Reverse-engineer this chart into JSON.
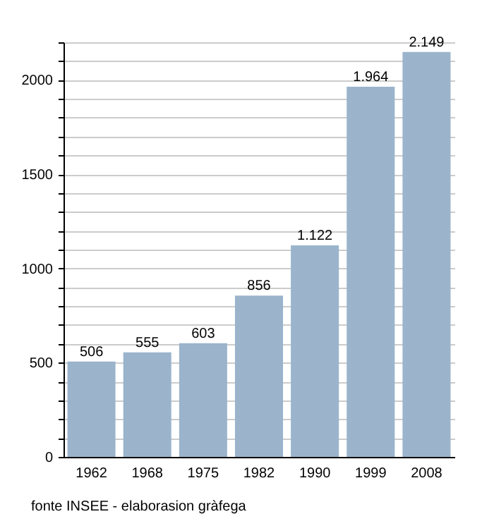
{
  "chart_data": {
    "type": "bar",
    "categories": [
      "1962",
      "1968",
      "1975",
      "1982",
      "1990",
      "1999",
      "2008"
    ],
    "values": [
      506,
      555,
      603,
      856,
      1122,
      1964,
      2149
    ],
    "value_labels": [
      "506",
      "555",
      "603",
      "856",
      "1.122",
      "1.964",
      "2.149"
    ],
    "color": "#9bb4cc",
    "ylim": [
      0,
      2200
    ],
    "yticks": [
      0,
      {
        "value": 100,
        "label": null
      },
      {
        "value": 200,
        "label": null
      },
      {
        "value": 300,
        "label": null
      },
      {
        "value": 400,
        "label": null
      },
      500,
      {
        "value": 600,
        "label": null
      },
      {
        "value": 700,
        "label": null
      },
      {
        "value": 800,
        "label": null
      },
      {
        "value": 900,
        "label": null
      },
      1000,
      {
        "value": 1100,
        "label": null
      },
      {
        "value": 1200,
        "label": null
      },
      {
        "value": 1300,
        "label": null
      },
      {
        "value": 1400,
        "label": null
      },
      1500,
      {
        "value": 1600,
        "label": null
      },
      {
        "value": 1700,
        "label": null
      },
      {
        "value": 1800,
        "label": null
      },
      {
        "value": 1900,
        "label": null
      },
      2000,
      {
        "value": 2100,
        "label": null
      },
      {
        "value": 2200,
        "label": null
      }
    ],
    "grid": "y",
    "annotations": [
      "fonte INSEE - elaborasion gràfega"
    ]
  }
}
